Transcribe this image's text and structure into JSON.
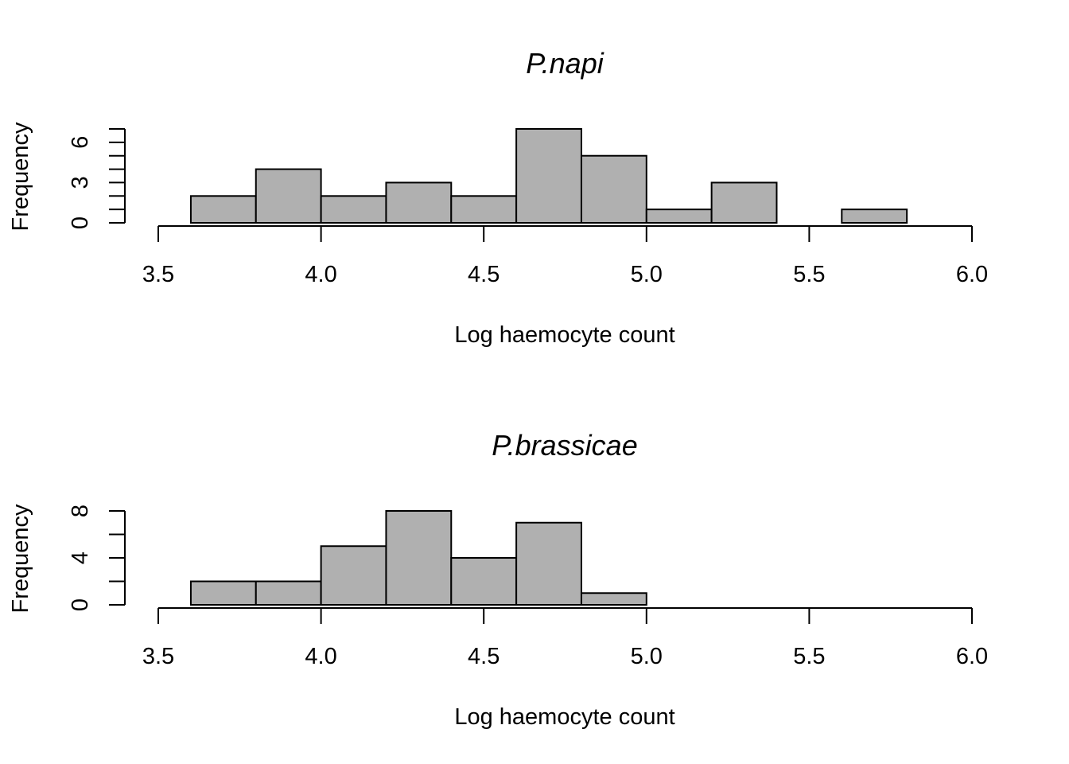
{
  "chart_data": [
    {
      "type": "bar",
      "title": "P.napi",
      "xlabel": "Log haemocyte count",
      "ylabel": "Frequency",
      "xlim": [
        3.5,
        6.0
      ],
      "ylim": [
        0,
        7
      ],
      "x_ticks": [
        "3.5",
        "4.0",
        "4.5",
        "5.0",
        "5.5",
        "6.0"
      ],
      "y_ticks": [
        "0",
        "3",
        "6"
      ],
      "y_minor_step": 1,
      "bin_width": 0.2,
      "bins": [
        {
          "start": 3.6,
          "count": 2
        },
        {
          "start": 3.8,
          "count": 4
        },
        {
          "start": 4.0,
          "count": 2
        },
        {
          "start": 4.2,
          "count": 3
        },
        {
          "start": 4.4,
          "count": 2
        },
        {
          "start": 4.6,
          "count": 7
        },
        {
          "start": 4.8,
          "count": 5
        },
        {
          "start": 5.0,
          "count": 1
        },
        {
          "start": 5.2,
          "count": 3
        },
        {
          "start": 5.4,
          "count": 0
        },
        {
          "start": 5.6,
          "count": 1
        }
      ],
      "bar_color": "#b0b0b0",
      "grid": false
    },
    {
      "type": "bar",
      "title": "P.brassicae",
      "xlabel": "Log haemocyte count",
      "ylabel": "Frequency",
      "xlim": [
        3.5,
        6.0
      ],
      "ylim": [
        0,
        8
      ],
      "x_ticks": [
        "3.5",
        "4.0",
        "4.5",
        "5.0",
        "5.5",
        "6.0"
      ],
      "y_ticks": [
        "0",
        "4",
        "8"
      ],
      "y_minor_step": 2,
      "bin_width": 0.2,
      "bins": [
        {
          "start": 3.6,
          "count": 2
        },
        {
          "start": 3.8,
          "count": 2
        },
        {
          "start": 4.0,
          "count": 5
        },
        {
          "start": 4.2,
          "count": 8
        },
        {
          "start": 4.4,
          "count": 4
        },
        {
          "start": 4.6,
          "count": 7
        },
        {
          "start": 4.8,
          "count": 1
        }
      ],
      "bar_color": "#b0b0b0",
      "grid": false
    }
  ]
}
